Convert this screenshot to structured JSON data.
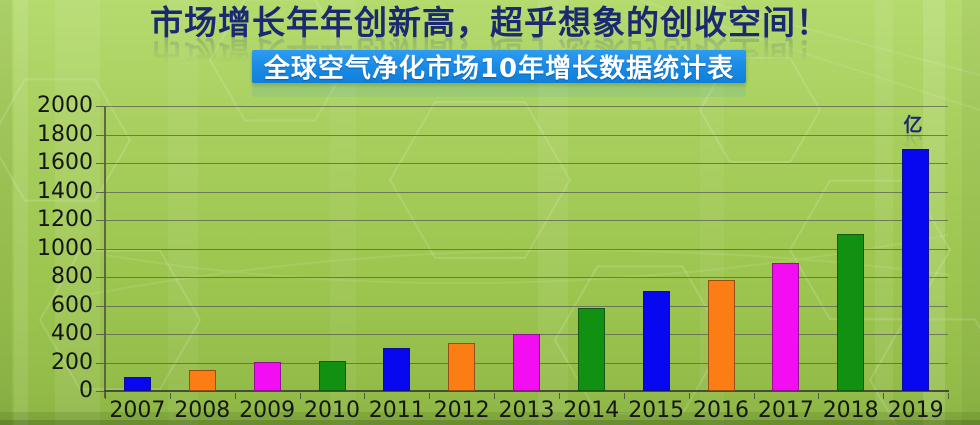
{
  "slide": {
    "title": "市场增长年年创新高，超乎想象的创收空间！",
    "subtitle": "全球空气净化市场10年增长数据统计表"
  },
  "chart_data": {
    "type": "bar",
    "title": "全球空气净化市场10年增长数据统计表",
    "unit": "亿",
    "categories": [
      "2007",
      "2008",
      "2009",
      "2010",
      "2011",
      "2012",
      "2013",
      "2014",
      "2015",
      "2016",
      "2017",
      "2018",
      "2019"
    ],
    "values": [
      100,
      150,
      200,
      210,
      300,
      340,
      400,
      580,
      700,
      780,
      900,
      1100,
      1700
    ],
    "ylim": [
      0,
      2000
    ],
    "yticks": [
      0,
      200,
      400,
      600,
      800,
      1000,
      1200,
      1400,
      1600,
      1800,
      2000
    ],
    "bar_color_cycle": [
      "#0808f0",
      "#fb7d14",
      "#f20df2",
      "#129012"
    ],
    "grid": true,
    "legend": false,
    "xlabel": "",
    "ylabel": ""
  },
  "colors": {
    "title_text": "#1b2a70",
    "subtitle_bg": "#1b8ce6",
    "subtitle_text": "#ffffff",
    "axis_text": "#161616",
    "gridline": "#5a5f50",
    "background_green": "#a2ca56"
  }
}
